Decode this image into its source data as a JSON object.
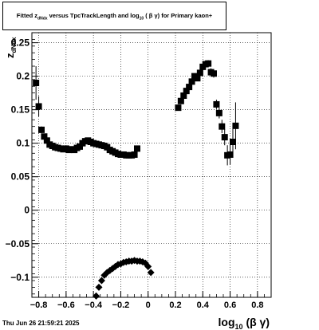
{
  "title": {
    "part1": "Fitted  z",
    "sub1": "dNdx",
    "part2": "  versus TpcTrackLength and log",
    "sub2": "10",
    "part3": " ( β γ) for Primary kaon+"
  },
  "timestamp": "Thu Jun 26 21:59:21 2025",
  "chart_data": {
    "type": "scatter",
    "xlabel": "log10 (β γ)",
    "ylabel": "z dNdx",
    "xlim": [
      -0.85,
      0.9
    ],
    "ylim": [
      -0.13,
      0.265
    ],
    "xticks": [
      -0.8,
      -0.6,
      -0.4,
      -0.2,
      0,
      0.2,
      0.4,
      0.6,
      0.8
    ],
    "xtick_labels": [
      "−0.8",
      "−0.6",
      "−0.4",
      "−0.2",
      "0",
      "0.2",
      "0.4",
      "0.6",
      "0.8"
    ],
    "yticks": [
      -0.1,
      -0.05,
      0,
      0.05,
      0.1,
      0.15,
      0.2,
      0.25
    ],
    "ytick_labels": [
      "−0.1",
      "−0.05",
      "0",
      "0.05",
      "0.1",
      "0.15",
      "0.2",
      "0.25"
    ],
    "grid": true,
    "series": [
      {
        "marker": "square",
        "points": [
          [
            -0.82,
            0.19,
            0.025
          ],
          [
            -0.8,
            0.155,
            0.015
          ],
          [
            -0.78,
            0.12,
            0.005
          ],
          [
            -0.76,
            0.11,
            0.003
          ],
          [
            -0.74,
            0.104,
            0.002
          ],
          [
            -0.72,
            0.098,
            0.002
          ],
          [
            -0.7,
            0.096,
            0.002
          ],
          [
            -0.68,
            0.094,
            0.002
          ],
          [
            -0.66,
            0.093,
            0.002
          ],
          [
            -0.64,
            0.092,
            0.002
          ],
          [
            -0.62,
            0.091,
            0.002
          ],
          [
            -0.6,
            0.092,
            0.002
          ],
          [
            -0.58,
            0.09,
            0.002
          ],
          [
            -0.56,
            0.091,
            0.002
          ],
          [
            -0.54,
            0.09,
            0.002
          ],
          [
            -0.52,
            0.093,
            0.002
          ],
          [
            -0.5,
            0.095,
            0.002
          ],
          [
            -0.48,
            0.1,
            0.002
          ],
          [
            -0.46,
            0.103,
            0.002
          ],
          [
            -0.44,
            0.104,
            0.002
          ],
          [
            -0.42,
            0.102,
            0.002
          ],
          [
            -0.4,
            0.1,
            0.002
          ],
          [
            -0.38,
            0.099,
            0.002
          ],
          [
            -0.36,
            0.098,
            0.002
          ],
          [
            -0.34,
            0.097,
            0.002
          ],
          [
            -0.32,
            0.096,
            0.002
          ],
          [
            -0.3,
            0.094,
            0.002
          ],
          [
            -0.28,
            0.09,
            0.002
          ],
          [
            -0.26,
            0.088,
            0.002
          ],
          [
            -0.24,
            0.086,
            0.002
          ],
          [
            -0.22,
            0.084,
            0.002
          ],
          [
            -0.2,
            0.083,
            0.002
          ],
          [
            -0.18,
            0.083,
            0.002
          ],
          [
            -0.16,
            0.082,
            0.002
          ],
          [
            -0.14,
            0.082,
            0.002
          ],
          [
            -0.12,
            0.082,
            0.002
          ],
          [
            -0.1,
            0.083,
            0.002
          ],
          [
            -0.08,
            0.092,
            0.003
          ],
          [
            0.22,
            0.153,
            0.003
          ],
          [
            0.24,
            0.163,
            0.003
          ],
          [
            0.26,
            0.171,
            0.003
          ],
          [
            0.28,
            0.178,
            0.003
          ],
          [
            0.3,
            0.184,
            0.003
          ],
          [
            0.32,
            0.192,
            0.003
          ],
          [
            0.34,
            0.2,
            0.003
          ],
          [
            0.36,
            0.197,
            0.003
          ],
          [
            0.38,
            0.205,
            0.003
          ],
          [
            0.4,
            0.214,
            0.004
          ],
          [
            0.42,
            0.218,
            0.004
          ],
          [
            0.44,
            0.219,
            0.005
          ],
          [
            0.46,
            0.206,
            0.006
          ],
          [
            0.48,
            0.204,
            0.006
          ],
          [
            0.5,
            0.158,
            0.007
          ],
          [
            0.52,
            0.145,
            0.008
          ],
          [
            0.54,
            0.125,
            0.01
          ],
          [
            0.56,
            0.109,
            0.012
          ],
          [
            0.58,
            0.082,
            0.015
          ],
          [
            0.6,
            0.083,
            0.015
          ],
          [
            0.62,
            0.102,
            0.02
          ],
          [
            0.64,
            0.126,
            0.035
          ]
        ]
      },
      {
        "marker": "diamond",
        "points": [
          [
            -0.38,
            -0.128,
            0.005
          ],
          [
            -0.36,
            -0.115,
            0.004
          ],
          [
            -0.34,
            -0.105,
            0.003
          ],
          [
            -0.32,
            -0.097,
            0.002
          ],
          [
            -0.3,
            -0.093,
            0.002
          ],
          [
            -0.28,
            -0.09,
            0.002
          ],
          [
            -0.26,
            -0.087,
            0.002
          ],
          [
            -0.24,
            -0.084,
            0.002
          ],
          [
            -0.22,
            -0.081,
            0.002
          ],
          [
            -0.2,
            -0.08,
            0.002
          ],
          [
            -0.18,
            -0.078,
            0.002
          ],
          [
            -0.16,
            -0.077,
            0.002
          ],
          [
            -0.14,
            -0.076,
            0.002
          ],
          [
            -0.12,
            -0.076,
            0.002
          ],
          [
            -0.1,
            -0.075,
            0.002
          ],
          [
            -0.08,
            -0.076,
            0.002
          ],
          [
            -0.06,
            -0.076,
            0.002
          ],
          [
            -0.04,
            -0.077,
            0.002
          ],
          [
            -0.02,
            -0.079,
            0.002
          ],
          [
            0.0,
            -0.084,
            0.003
          ],
          [
            0.02,
            -0.093,
            0.003
          ]
        ]
      }
    ]
  }
}
